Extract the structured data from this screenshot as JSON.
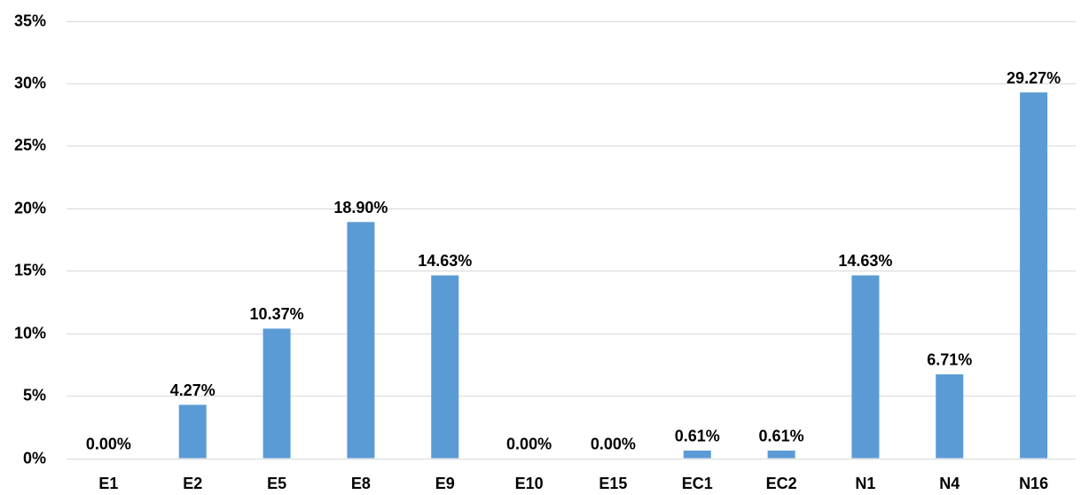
{
  "chart_data": {
    "type": "bar",
    "title": "",
    "xlabel": "",
    "ylabel": "",
    "categories": [
      "E1",
      "E2",
      "E5",
      "E8",
      "E9",
      "E10",
      "E15",
      "EC1",
      "EC2",
      "N1",
      "N4",
      "N16"
    ],
    "values": [
      0.0,
      4.27,
      10.37,
      18.9,
      14.63,
      0.0,
      0.0,
      0.61,
      0.61,
      14.63,
      6.71,
      29.27
    ],
    "data_labels": [
      "0.00%",
      "4.27%",
      "10.37%",
      "18.90%",
      "14.63%",
      "0.00%",
      "0.00%",
      "0.61%",
      "0.61%",
      "14.63%",
      "6.71%",
      "29.27%"
    ],
    "ylim": [
      0,
      35
    ],
    "yticks": [
      0,
      5,
      10,
      15,
      20,
      25,
      30,
      35
    ],
    "ytick_labels": [
      "0%",
      "5%",
      "10%",
      "15%",
      "20%",
      "25%",
      "30%",
      "35%"
    ],
    "grid": true,
    "legend": "none",
    "colors": {
      "bar": "#5B9BD5",
      "grid": "#D9D9D9",
      "text": "#000000"
    }
  }
}
